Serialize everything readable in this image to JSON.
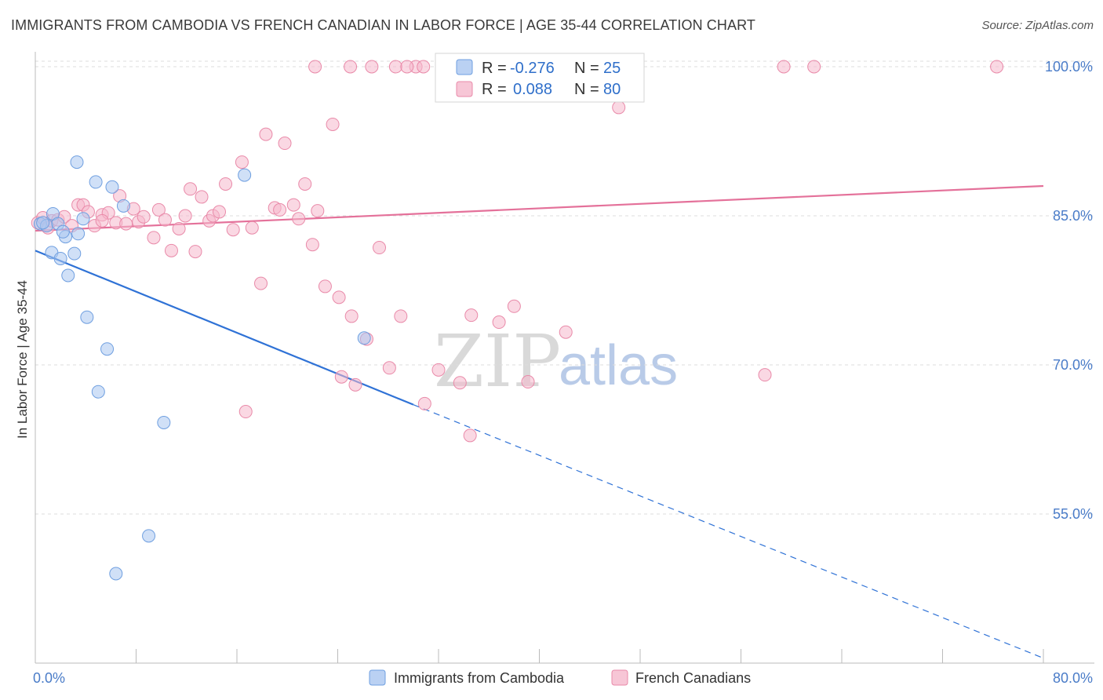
{
  "header": {
    "title": "IMMIGRANTS FROM CAMBODIA VS FRENCH CANADIAN IN LABOR FORCE | AGE 35-44 CORRELATION CHART",
    "source": "Source: ZipAtlas.com"
  },
  "watermark": {
    "zip": "ZIP",
    "atlas": "atlas"
  },
  "colors": {
    "blue_fill": "#a9c6f0",
    "blue_stroke": "#6f9fe0",
    "blue_line": "#2f72d6",
    "pink_fill": "#f5b8cc",
    "pink_stroke": "#e98aa9",
    "pink_line": "#e4719a",
    "tick_text": "#4a7cc8",
    "grid": "#dddddd"
  },
  "stats_box": {
    "rows": [
      {
        "r_label": "R =",
        "r_value": "-0.276",
        "n_label": "N =",
        "n_value": "25"
      },
      {
        "r_label": "R =",
        "r_value": "0.088",
        "n_label": "N =",
        "n_value": "80"
      }
    ]
  },
  "chart_data": {
    "type": "scatter",
    "title": "IMMIGRANTS FROM CAMBODIA VS FRENCH CANADIAN IN LABOR FORCE | AGE 35-44 CORRELATION CHART",
    "xlabel": "",
    "ylabel": "In Labor Force | Age 35-44",
    "xlim": [
      0,
      80
    ],
    "ylim": [
      40,
      101.5
    ],
    "x_tick_labels": [
      {
        "value": 0,
        "label": "0.0%"
      },
      {
        "value": 80,
        "label": "80.0%"
      }
    ],
    "x_minor_ticks": [
      0,
      8,
      16,
      24,
      32,
      40,
      48,
      56,
      64,
      72,
      80
    ],
    "y_ticks": [
      {
        "value": 100,
        "label": "100.0%"
      },
      {
        "value": 85,
        "label": "85.0%"
      },
      {
        "value": 70,
        "label": "70.0%"
      },
      {
        "value": 55,
        "label": "55.0%"
      }
    ],
    "grid": true,
    "legend_position": "bottom",
    "series": [
      {
        "name": "Immigrants from Cambodia",
        "color": "blue",
        "points": [
          [
            0.4,
            84.2
          ],
          [
            0.9,
            84.0
          ],
          [
            1.4,
            85.2
          ],
          [
            1.8,
            84.2
          ],
          [
            1.3,
            81.3
          ],
          [
            2.0,
            80.7
          ],
          [
            2.4,
            82.9
          ],
          [
            2.6,
            79.0
          ],
          [
            3.1,
            81.2
          ],
          [
            3.4,
            83.2
          ],
          [
            3.3,
            90.4
          ],
          [
            3.8,
            84.7
          ],
          [
            4.1,
            74.8
          ],
          [
            4.8,
            88.4
          ],
          [
            5.0,
            67.3
          ],
          [
            5.7,
            71.6
          ],
          [
            6.1,
            87.9
          ],
          [
            7.0,
            86.0
          ],
          [
            6.4,
            49.0
          ],
          [
            9.0,
            52.8
          ],
          [
            10.2,
            64.2
          ],
          [
            16.6,
            89.1
          ],
          [
            26.1,
            72.7
          ],
          [
            0.6,
            84.3
          ],
          [
            2.2,
            83.4
          ]
        ]
      },
      {
        "name": "French Canadians",
        "color": "pink",
        "points": [
          [
            0.2,
            84.3
          ],
          [
            0.6,
            84.8
          ],
          [
            1.0,
            83.8
          ],
          [
            1.3,
            84.5
          ],
          [
            1.8,
            84.6
          ],
          [
            2.3,
            84.9
          ],
          [
            2.9,
            84.0
          ],
          [
            3.4,
            86.1
          ],
          [
            3.8,
            86.1
          ],
          [
            4.2,
            85.4
          ],
          [
            4.7,
            84.0
          ],
          [
            5.3,
            85.1
          ],
          [
            5.8,
            85.3
          ],
          [
            6.4,
            84.3
          ],
          [
            6.7,
            87.0
          ],
          [
            7.2,
            84.2
          ],
          [
            7.8,
            85.7
          ],
          [
            8.2,
            84.4
          ],
          [
            8.6,
            84.9
          ],
          [
            9.4,
            82.8
          ],
          [
            9.8,
            85.6
          ],
          [
            10.3,
            84.6
          ],
          [
            10.8,
            81.5
          ],
          [
            11.4,
            83.7
          ],
          [
            11.9,
            85.0
          ],
          [
            12.3,
            87.7
          ],
          [
            12.7,
            81.4
          ],
          [
            13.2,
            86.9
          ],
          [
            13.8,
            84.5
          ],
          [
            14.1,
            85.0
          ],
          [
            14.6,
            85.4
          ],
          [
            15.1,
            88.2
          ],
          [
            15.7,
            83.6
          ],
          [
            16.4,
            90.4
          ],
          [
            17.2,
            83.8
          ],
          [
            17.9,
            78.2
          ],
          [
            18.3,
            93.2
          ],
          [
            19.0,
            85.8
          ],
          [
            19.4,
            85.6
          ],
          [
            19.8,
            92.3
          ],
          [
            20.5,
            86.1
          ],
          [
            20.9,
            84.7
          ],
          [
            21.4,
            88.2
          ],
          [
            22.0,
            82.1
          ],
          [
            22.4,
            85.5
          ],
          [
            23.0,
            77.9
          ],
          [
            23.6,
            94.2
          ],
          [
            24.1,
            76.8
          ],
          [
            25.1,
            74.9
          ],
          [
            26.3,
            72.6
          ],
          [
            27.3,
            81.8
          ],
          [
            28.1,
            69.7
          ],
          [
            30.9,
            66.1
          ],
          [
            32.0,
            69.5
          ],
          [
            33.7,
            68.2
          ],
          [
            34.6,
            75.0
          ],
          [
            36.8,
            74.3
          ],
          [
            38.0,
            75.9
          ],
          [
            39.1,
            68.3
          ],
          [
            42.1,
            73.3
          ],
          [
            57.9,
            69.0
          ],
          [
            59.4,
            100.0
          ],
          [
            61.8,
            100.0
          ],
          [
            46.3,
            95.9
          ],
          [
            76.3,
            100.0
          ],
          [
            25.0,
            100.0
          ],
          [
            26.7,
            100.0
          ],
          [
            28.6,
            100.0
          ],
          [
            30.2,
            100.0
          ],
          [
            30.8,
            100.0
          ],
          [
            33.0,
            100.0
          ],
          [
            38.1,
            100.0
          ],
          [
            22.2,
            100.0
          ],
          [
            29.5,
            100.0
          ],
          [
            16.7,
            65.3
          ],
          [
            24.3,
            68.8
          ],
          [
            25.4,
            68.0
          ],
          [
            29.0,
            74.9
          ],
          [
            34.5,
            62.9
          ],
          [
            5.3,
            84.5
          ]
        ]
      }
    ],
    "trend_lines": [
      {
        "series": "Immigrants from Cambodia",
        "solid": [
          [
            0,
            81.5
          ],
          [
            30,
            66.0
          ]
        ],
        "dashed": [
          [
            30,
            66.0
          ],
          [
            80,
            40.5
          ]
        ]
      },
      {
        "series": "French Canadians",
        "solid": [
          [
            0,
            83.5
          ],
          [
            80,
            88.0
          ]
        ]
      }
    ]
  },
  "legend": {
    "items": [
      {
        "label": "Immigrants from Cambodia",
        "color": "blue"
      },
      {
        "label": "French Canadians",
        "color": "pink"
      }
    ]
  }
}
